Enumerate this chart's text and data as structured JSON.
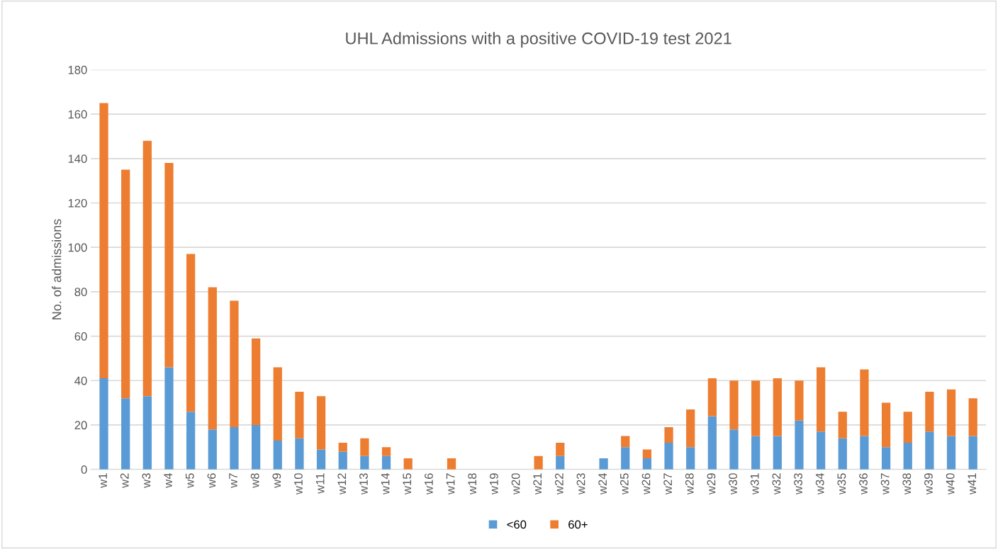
{
  "chart_data": {
    "type": "bar",
    "title": "UHL Admissions with a positive COVID-19 test 2021",
    "ylabel": "No. of admissions",
    "categories": [
      "w1",
      "w2",
      "w3",
      "w4",
      "w5",
      "w6",
      "w7",
      "w8",
      "w9",
      "w10",
      "w11",
      "w12",
      "w13",
      "w14",
      "w15",
      "w16",
      "w17",
      "w18",
      "w19",
      "w20",
      "w21",
      "w22",
      "w23",
      "w24",
      "w25",
      "w26",
      "w27",
      "w28",
      "w29",
      "w30",
      "w31",
      "w32",
      "w33",
      "w34",
      "w35",
      "w36",
      "w37",
      "w38",
      "w39",
      "w40",
      "w41"
    ],
    "series": [
      {
        "name": "<60",
        "color": "#5b9bd5",
        "values": [
          41,
          32,
          33,
          46,
          26,
          18,
          19,
          20,
          13,
          14,
          9,
          8,
          6,
          6,
          0,
          0,
          0,
          0,
          0,
          0,
          0,
          6,
          0,
          5,
          10,
          5,
          12,
          10,
          24,
          18,
          15,
          15,
          22,
          17,
          14,
          15,
          10,
          12,
          17,
          15,
          15
        ]
      },
      {
        "name": "60+",
        "color": "#ed7d31",
        "values": [
          124,
          103,
          115,
          92,
          71,
          64,
          57,
          39,
          33,
          21,
          24,
          4,
          8,
          4,
          5,
          0,
          5,
          0,
          0,
          0,
          6,
          6,
          0,
          0,
          5,
          4,
          7,
          17,
          17,
          22,
          25,
          26,
          18,
          29,
          12,
          30,
          20,
          14,
          18,
          21,
          17
        ]
      }
    ],
    "stacked": true,
    "ylim": [
      0,
      180
    ],
    "yticks": [
      0,
      20,
      40,
      60,
      80,
      100,
      120,
      140,
      160,
      180
    ],
    "grid": "y",
    "legend": "bottom"
  }
}
